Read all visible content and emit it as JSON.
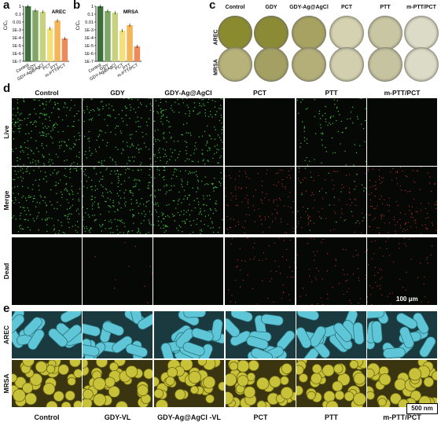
{
  "panel_labels": {
    "a": "a",
    "b": "b",
    "c": "c",
    "d": "d",
    "e": "e"
  },
  "chart_data": [
    {
      "type": "bar",
      "title": "AREC",
      "ylabel": "C/C₀",
      "categories": [
        "Control",
        "GDY",
        "GDY-Ag@AgCl",
        "PCT",
        "PTT",
        "m-PTT/PCT"
      ],
      "values": [
        1.0,
        0.3,
        0.2,
        0.0015,
        0.015,
        8e-05
      ],
      "ytick_labels": [
        "1",
        "0.1",
        "0.01",
        "1E-3",
        "1E-4",
        "1E-5",
        "1E-6",
        "1E-7"
      ],
      "yscale": "log",
      "ylim": [
        1e-07,
        1
      ],
      "colors": [
        "#3b6e3b",
        "#7fa866",
        "#c6d27e",
        "#f3e07a",
        "#f5b557",
        "#ee8a5a"
      ]
    },
    {
      "type": "bar",
      "title": "MRSA",
      "ylabel": "C/C₀",
      "categories": [
        "Control",
        "GDY",
        "GDY-Ag@AgCl",
        "PCT",
        "PTT",
        "m-PTT/PCT"
      ],
      "values": [
        1.0,
        0.25,
        0.15,
        0.0008,
        0.004,
        8e-06
      ],
      "ytick_labels": [
        "1",
        "0.1",
        "0.01",
        "1E-3",
        "1E-4",
        "1E-5",
        "1E-6",
        "1E-7"
      ],
      "yscale": "log",
      "ylim": [
        1e-07,
        1
      ],
      "colors": [
        "#3b6e3b",
        "#7fa866",
        "#c6d27e",
        "#f3e07a",
        "#f5b557",
        "#ee8a5a"
      ]
    }
  ],
  "panel_c": {
    "columns": [
      "Control",
      "GDY",
      "GDY-Ag@AgCl",
      "PCT",
      "PTT",
      "m-PTT/PCT"
    ],
    "rows": [
      "AREC",
      "MRSA"
    ]
  },
  "panel_d": {
    "columns": [
      "Control",
      "GDY",
      "GDY-Ag@AgCl",
      "PCT",
      "PTT",
      "m-PTT/PCT"
    ],
    "rows": [
      "Live",
      "Merge",
      "Dead"
    ],
    "scalebar": "100 μm"
  },
  "panel_e": {
    "columns": [
      "Control",
      "GDY-VL",
      "GDY-Ag@AgCl -VL",
      "PCT",
      "PTT",
      "m-PTT/PCT"
    ],
    "rows": [
      "AREC",
      "MRSA"
    ],
    "scalebar": "500 nm"
  }
}
